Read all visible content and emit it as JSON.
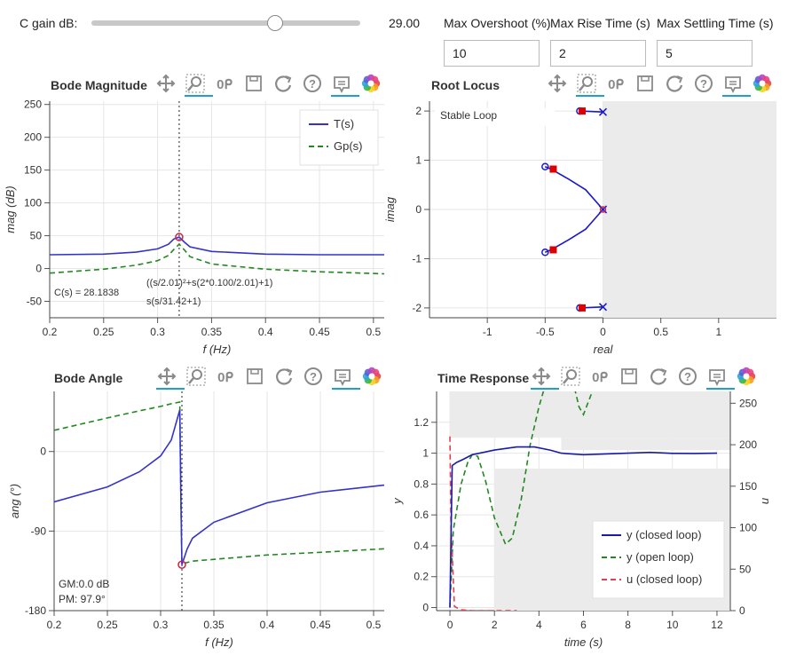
{
  "controls": {
    "gain_label": "C gain dB:",
    "gain_value": "29.00",
    "gain_fraction": 0.68,
    "overshoot_label": "Max Overshoot (%)",
    "rise_label": "Max Rise Time (s)",
    "settling_label": "Max Settling Time (s)",
    "overshoot_value": "10",
    "rise_value": "2",
    "settling_value": "5"
  },
  "panels": {
    "bode_mag": "Bode Magnitude",
    "root_locus": "Root Locus",
    "bode_angle": "Bode Angle",
    "time_response": "Time Response"
  },
  "icons": [
    "pan-icon",
    "zoom-icon",
    "wheel-zoom-icon",
    "save-icon",
    "reset-icon",
    "help-icon",
    "hover-icon",
    "bokeh-logo-icon"
  ],
  "colors": {
    "closed": "#3333cc",
    "open": "#228822",
    "control": "#e04050",
    "pole": "#dd0000",
    "accent": "#1f9fd0"
  },
  "annotations": {
    "c_value": "C(s) =  28.1838",
    "numerator": "((s/2.01)²+s(2*0.100/2.01)+1)",
    "denominator": "s(s/31.42+1)",
    "gm": "GM:0.0 dB",
    "pm": "PM: 97.9°",
    "stable": "Stable Loop"
  },
  "chart_data": [
    {
      "type": "line",
      "title": "Bode Magnitude",
      "xlabel": "f (Hz)",
      "ylabel": "mag (dB)",
      "xlim": [
        0.2,
        0.51
      ],
      "ylim": [
        -75,
        255
      ],
      "xticks": [
        0.2,
        0.25,
        0.3,
        0.35,
        0.4,
        0.45,
        0.5
      ],
      "yticks": [
        -50,
        0,
        50,
        100,
        150,
        200,
        250
      ],
      "legend": "top-right",
      "series": [
        {
          "name": "T(s)",
          "style": "solid",
          "x": [
            0.2,
            0.25,
            0.28,
            0.3,
            0.31,
            0.315,
            0.32,
            0.325,
            0.33,
            0.35,
            0.4,
            0.45,
            0.51
          ],
          "y": [
            21,
            22,
            25,
            30,
            37,
            45,
            48,
            40,
            33,
            26,
            22,
            21,
            21
          ]
        },
        {
          "name": "Gp(s)",
          "style": "dashed",
          "x": [
            0.2,
            0.25,
            0.28,
            0.3,
            0.31,
            0.315,
            0.32,
            0.325,
            0.33,
            0.35,
            0.4,
            0.45,
            0.51
          ],
          "y": [
            -7,
            -1,
            5,
            12,
            20,
            29,
            37,
            28,
            18,
            7,
            -1,
            -5,
            -8
          ]
        }
      ],
      "crossover_x": 0.32,
      "marker": {
        "x": 0.32,
        "y": 48
      }
    },
    {
      "type": "scatter",
      "title": "Root Locus",
      "xlabel": "real",
      "ylabel": "imag",
      "xlim": [
        -1.5,
        1.5
      ],
      "ylim": [
        -2.2,
        2.2
      ],
      "xticks": [
        -1,
        -0.5,
        0,
        0.5,
        1
      ],
      "yticks": [
        -2,
        -1,
        0,
        1,
        2
      ],
      "stable_region_from": 0,
      "locus_upper": [
        [
          -0.5,
          0.87
        ],
        [
          -0.45,
          0.82
        ],
        [
          -0.3,
          0.62
        ],
        [
          -0.15,
          0.4
        ],
        [
          0,
          0
        ]
      ],
      "locus_lower": [
        [
          -0.5,
          -0.87
        ],
        [
          -0.45,
          -0.82
        ],
        [
          -0.3,
          -0.62
        ],
        [
          -0.15,
          -0.4
        ],
        [
          0,
          0
        ]
      ],
      "branch_top": [
        [
          -0.2,
          2.0
        ],
        [
          0,
          1.98
        ]
      ],
      "branch_bottom": [
        [
          -0.2,
          -2.0
        ],
        [
          0,
          -1.98
        ]
      ],
      "open_poles": [
        [
          0,
          0
        ],
        [
          0,
          1.98
        ],
        [
          0,
          -1.98
        ]
      ],
      "open_zeros": [
        [
          -0.5,
          0.87
        ],
        [
          -0.5,
          -0.87
        ],
        [
          -0.2,
          2.0
        ],
        [
          -0.2,
          -2.0
        ]
      ],
      "closed_poles": [
        [
          -0.43,
          0.82
        ],
        [
          -0.43,
          -0.82
        ],
        [
          -0.18,
          2.0
        ],
        [
          -0.18,
          -2.0
        ]
      ]
    },
    {
      "type": "line",
      "title": "Bode Angle",
      "xlabel": "f (Hz)",
      "ylabel": "ang (°)",
      "xlim": [
        0.2,
        0.51
      ],
      "ylim": [
        -180,
        68
      ],
      "xticks": [
        0.2,
        0.25,
        0.3,
        0.35,
        0.4,
        0.45,
        0.5
      ],
      "yticks": [
        -180,
        -90,
        0
      ],
      "series": [
        {
          "name": "T(s)",
          "style": "solid",
          "x": [
            0.2,
            0.25,
            0.28,
            0.3,
            0.31,
            0.318,
            0.319,
            0.32,
            0.325,
            0.33,
            0.35,
            0.4,
            0.45,
            0.51
          ],
          "y": [
            -57,
            -40,
            -23,
            -5,
            13,
            47,
            -50,
            -128,
            -110,
            -98,
            -80,
            -58,
            -46,
            -38
          ]
        },
        {
          "name": "Gp(s)",
          "style": "dashed",
          "x": [
            0.2,
            0.25,
            0.28,
            0.3,
            0.31,
            0.318,
            0.319,
            0.32,
            0.33,
            0.4,
            0.45,
            0.51
          ],
          "y": [
            24,
            38,
            46,
            51,
            54,
            56,
            -50,
            -127,
            -124,
            -117,
            -114,
            -110
          ]
        }
      ],
      "crossover_x": 0.32,
      "marker": {
        "x": 0.32,
        "y": -128
      }
    },
    {
      "type": "line",
      "title": "Time Response",
      "xlabel": "time (s)",
      "ylabel": "y",
      "y2label": "u",
      "xlim": [
        -0.6,
        12.6
      ],
      "ylim": [
        -0.02,
        1.4
      ],
      "y2lim": [
        0,
        260
      ],
      "xticks": [
        0,
        2,
        4,
        6,
        8,
        10,
        12
      ],
      "yticks": [
        0,
        0.2,
        0.4,
        0.6,
        0.8,
        1,
        1.2
      ],
      "y2ticks": [
        0,
        50,
        100,
        150,
        200,
        250
      ],
      "legend": "bottom-right",
      "series": [
        {
          "name": "y (closed loop)",
          "style": "solid",
          "x": [
            0,
            0.1,
            0.3,
            0.6,
            1,
            2,
            3,
            3.8,
            4.5,
            5,
            6,
            7,
            8,
            9,
            10,
            11,
            12
          ],
          "y": [
            0,
            0.92,
            0.94,
            0.96,
            0.99,
            1.02,
            1.04,
            1.04,
            1.02,
            1.0,
            0.99,
            0.995,
            1.0,
            1.005,
            0.999,
            0.998,
            1.0
          ]
        },
        {
          "name": "y (open loop)",
          "style": "dashed",
          "x": [
            0,
            0.15,
            0.5,
            0.8,
            1.0,
            1.25,
            1.6,
            2.0,
            2.5,
            2.8,
            3.2,
            3.6,
            4.0,
            4.3
          ],
          "y": [
            0,
            0.5,
            0.8,
            0.94,
            0.99,
            0.98,
            0.82,
            0.58,
            0.41,
            0.45,
            0.7,
            1.05,
            1.3,
            1.45
          ]
        },
        {
          "name": "u (closed loop)",
          "style": "dashed",
          "axis": "y2",
          "x": [
            0,
            0.05,
            0.2,
            0.5,
            1,
            2,
            3
          ],
          "y": [
            210,
            100,
            5,
            1,
            0,
            0,
            0
          ]
        }
      ],
      "open_loop_extra": {
        "x": [
          5.6,
          5.8,
          6.0,
          6.4
        ],
        "y": [
          1.42,
          1.3,
          1.25,
          1.4
        ]
      },
      "spec_region": {
        "overshoot": 1.1,
        "settling_band": 0.9,
        "rise_time": 2,
        "settling_time": 5
      }
    }
  ]
}
